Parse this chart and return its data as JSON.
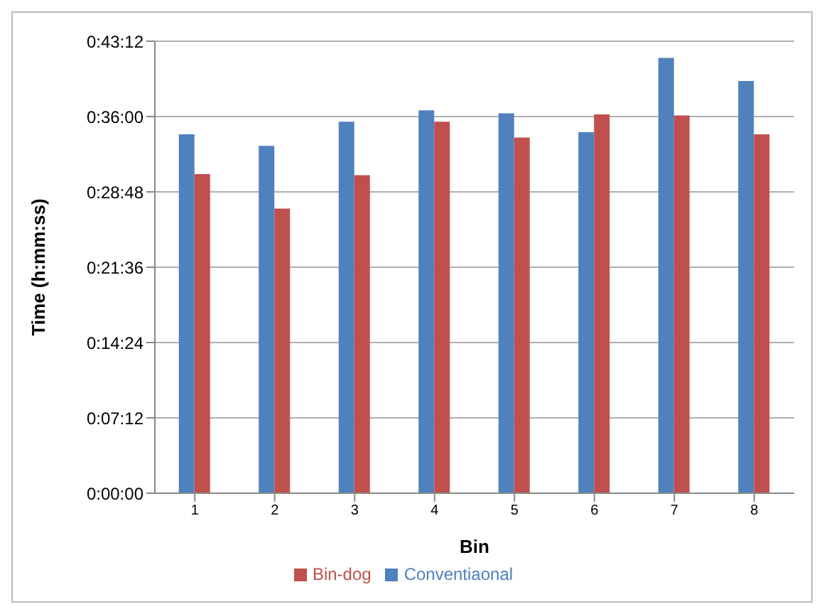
{
  "chart_data": {
    "type": "bar",
    "xlabel": "Bin",
    "ylabel": "Time (h:mm:ss)",
    "categories": [
      "1",
      "2",
      "3",
      "4",
      "5",
      "6",
      "7",
      "8"
    ],
    "series": [
      {
        "name": "Conventiaonal",
        "color": "#4f81bd",
        "values": [
          34.3,
          33.2,
          35.5,
          36.6,
          36.3,
          34.5,
          41.6,
          39.4
        ]
      },
      {
        "name": "Bin-dog",
        "color": "#c0504d",
        "values": [
          30.5,
          27.2,
          30.4,
          35.5,
          34.0,
          36.2,
          36.1,
          34.3
        ]
      }
    ],
    "ylim": [
      0,
      43.2
    ],
    "yticks": [
      {
        "value": 0,
        "label": "0:00:00"
      },
      {
        "value": 7.2,
        "label": "0:07:12"
      },
      {
        "value": 14.4,
        "label": "0:14:24"
      },
      {
        "value": 21.6,
        "label": "0:21:36"
      },
      {
        "value": 28.8,
        "label": "0:28:48"
      },
      {
        "value": 36,
        "label": "0:36:00"
      },
      {
        "value": 43.2,
        "label": "0:43:12"
      }
    ],
    "grid": "y",
    "legend": "bottom"
  }
}
